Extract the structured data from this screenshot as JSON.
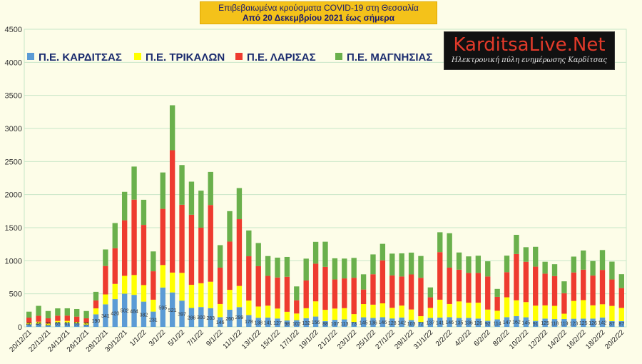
{
  "title": {
    "line1": "Επιβεβαιωμένα κρούσματα COVID-19 στη Θεσσαλία",
    "line2": "Από 20 Δεκεμβρίου 2021 έως σήμερα"
  },
  "logo": {
    "name": "KarditsaLive.Net",
    "tagline": "Ηλεκτρονική πύλη ενημέρωσης Καρδίτσας"
  },
  "colors": {
    "karditsa": "#5b9bd5",
    "trikala": "#ffff00",
    "larisa": "#ee3b2f",
    "magnisia": "#6ab04c",
    "grid": "#c8e6c8"
  },
  "chart_data": {
    "type": "bar",
    "stacked": true,
    "title": "Επιβεβαιωμένα κρούσματα COVID-19 στη Θεσσαλία",
    "subtitle": "Από 20 Δεκεμβρίου 2021 έως σήμερα",
    "xlabel": "",
    "ylabel": "",
    "ylim": [
      0,
      4500
    ],
    "yticks": [
      0,
      500,
      1000,
      1500,
      2000,
      2500,
      3000,
      3500,
      4000,
      4500
    ],
    "grid": true,
    "legend_position": "top-left",
    "categories": [
      "20/12/21",
      "21/12/21",
      "22/12/21",
      "23/12/21",
      "24/12/21",
      "25/12/21",
      "26/12/21",
      "27/12/21",
      "28/12/21",
      "29/12/21",
      "30/12/21",
      "31/12/21",
      "1/1/22",
      "2/1/22",
      "3/1/22",
      "4/1/22",
      "5/1/22",
      "6/1/22",
      "7/1/22",
      "8/1/22",
      "9/1/22",
      "10/1/22",
      "11/1/22",
      "12/1/22",
      "13/1/22",
      "14/1/22",
      "15/1/22",
      "16/1/22",
      "17/1/22",
      "18/1/22",
      "19/1/22",
      "20/1/22",
      "21/1/22",
      "22/1/22",
      "23/1/22",
      "24/1/22",
      "25/1/22",
      "26/1/22",
      "27/1/22",
      "28/1/22",
      "29/1/22",
      "30/1/22",
      "31/1/22",
      "1/2/22",
      "2/2/22",
      "3/2/22",
      "4/2/22",
      "5/2/22",
      "6/2/22",
      "7/2/22",
      "8/2/22",
      "9/2/22",
      "10/2/22",
      "11/2/22",
      "12/2/22",
      "13/2/22",
      "14/2/22",
      "15/2/22",
      "16/2/22",
      "17/2/22",
      "18/2/22",
      "19/2/22",
      "20/2/22"
    ],
    "xtick_labels": [
      "20/12/21",
      "22/12/21",
      "24/12/21",
      "26/12/21",
      "28/12/21",
      "30/12/21",
      "1/1/22",
      "3/1/22",
      "5/1/22",
      "7/1/22",
      "9/1/22",
      "11/1/22",
      "13/1/22",
      "15/1/22",
      "17/1/22",
      "19/1/22",
      "21/1/22",
      "23/1/22",
      "25/1/22",
      "27/1/22",
      "29/1/22",
      "31/1/22",
      "2/2/22",
      "4/2/22",
      "6/2/22",
      "8/2/22",
      "10/2/22",
      "12/2/22",
      "14/2/22",
      "16/2/22",
      "18/2/22",
      "20/2/22"
    ],
    "series": [
      {
        "name": "Π.Ε. ΚΑΡΔΙΤΣΑΣ",
        "color_key": "karditsa",
        "values": [
          40,
          48,
          25,
          65,
          61,
          55,
          35,
          190,
          341,
          420,
          502,
          484,
          382,
          231,
          595,
          521,
          397,
          286,
          300,
          283,
          146,
          260,
          299,
          178,
          138,
          141,
          127,
          98,
          102,
          132,
          156,
          88,
          107,
          113,
          73,
          145,
          136,
          146,
          128,
          142,
          103,
          72,
          137,
          141,
          146,
          135,
          136,
          126,
          92,
          114,
          147,
          162,
          145,
          91,
          125,
          118,
          119,
          123,
          125,
          126,
          142,
          87,
          87
        ]
      },
      {
        "name": "Π.Ε. ΤΡΙΚΑΛΩΝ",
        "color_key": "trikala",
        "values": [
          20,
          30,
          25,
          25,
          30,
          20,
          25,
          90,
          150,
          230,
          270,
          300,
          250,
          180,
          340,
          300,
          420,
          350,
          360,
          400,
          200,
          300,
          320,
          220,
          170,
          180,
          150,
          130,
          100,
          150,
          230,
          170,
          170,
          170,
          120,
          200,
          200,
          210,
          160,
          180,
          160,
          90,
          150,
          270,
          200,
          250,
          230,
          240,
          170,
          130,
          300,
          240,
          230,
          230,
          200,
          200,
          80,
          270,
          280,
          200,
          200,
          230,
          200
        ]
      },
      {
        "name": "Π.Ε. ΛΑΡΙΣΑΣ",
        "color_key": "larisa",
        "values": [
          80,
          90,
          80,
          80,
          80,
          80,
          70,
          120,
          430,
          540,
          840,
          1140,
          910,
          430,
          850,
          1850,
          1030,
          1060,
          840,
          1160,
          550,
          730,
          1010,
          670,
          610,
          450,
          470,
          530,
          200,
          420,
          570,
          650,
          440,
          450,
          550,
          220,
          460,
          650,
          490,
          440,
          530,
          580,
          160,
          720,
          550,
          480,
          450,
          450,
          500,
          210,
          380,
          700,
          610,
          590,
          480,
          450,
          310,
          430,
          460,
          450,
          520,
          400,
          300
        ]
      },
      {
        "name": "Π.Ε. ΜΑΓΝΗΣΙΑΣ",
        "color_key": "magnisia",
        "values": [
          90,
          150,
          110,
          110,
          110,
          115,
          110,
          130,
          250,
          380,
          430,
          500,
          380,
          300,
          550,
          680,
          600,
          500,
          560,
          500,
          340,
          460,
          470,
          390,
          350,
          300,
          300,
          300,
          210,
          330,
          330,
          380,
          320,
          300,
          300,
          230,
          300,
          250,
          330,
          350,
          330,
          330,
          150,
          300,
          520,
          260,
          250,
          260,
          230,
          120,
          250,
          290,
          220,
          300,
          180,
          180,
          180,
          240,
          290,
          220,
          300,
          270,
          210
        ]
      }
    ],
    "data_labels": {
      "series": "Π.Ε. ΚΑΡΔΙΤΣΑΣ",
      "values": [
        40,
        48,
        25,
        65,
        61,
        55,
        35,
        190,
        341,
        420,
        502,
        484,
        382,
        231,
        595,
        521,
        397,
        286,
        300,
        283,
        146,
        260,
        299,
        178,
        138,
        141,
        127,
        98,
        102,
        132,
        156,
        88,
        107,
        113,
        73,
        145,
        136,
        146,
        128,
        142,
        103,
        72,
        137,
        141,
        146,
        135,
        136,
        126,
        92,
        114,
        147,
        162,
        145,
        91,
        125,
        118,
        119,
        123,
        125,
        126,
        142,
        87,
        87
      ]
    }
  }
}
